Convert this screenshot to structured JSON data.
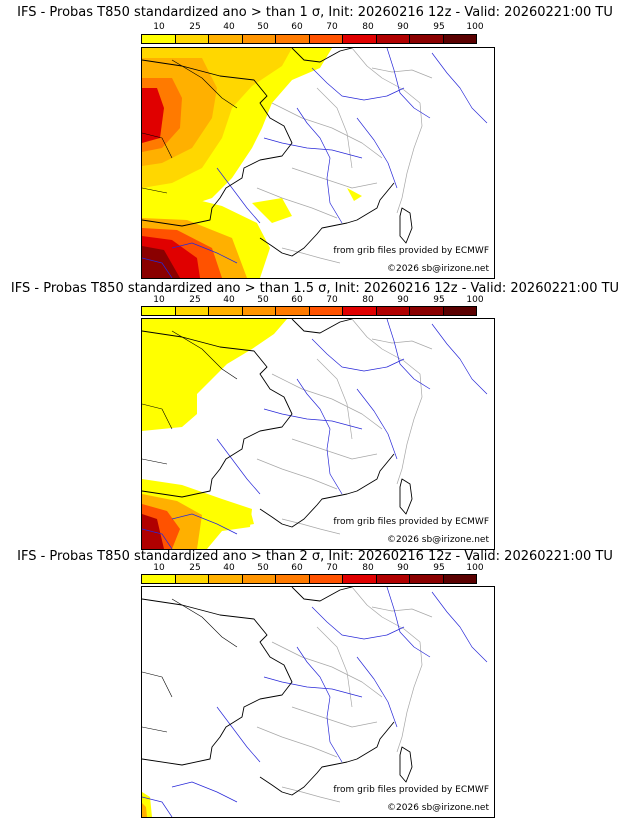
{
  "colorbar": {
    "ticks": [
      "10",
      "25",
      "40",
      "50",
      "60",
      "70",
      "80",
      "90",
      "95",
      "100"
    ],
    "colors": [
      "#ffff00",
      "#ffd700",
      "#ffb000",
      "#ff9400",
      "#ff7a00",
      "#ff5200",
      "#e00000",
      "#b00000",
      "#8a0000",
      "#5a0000"
    ]
  },
  "colors": {
    "coast": "#000000",
    "rivers": "#2828d8",
    "borders": "#a8a8a8"
  },
  "panels": [
    {
      "title": "IFS - Probas T850  standardized ano > than 1 σ, Init: 20260216 12z - Valid: 20260221:00 TU",
      "source": "from grib files provided by ECMWF",
      "copyright": "©2026 sb@irizone.net",
      "extent": "wide"
    },
    {
      "title": "IFS - Probas T850  standardized ano > than 1.5 σ, Init: 20260216 12z - Valid: 20260221:00 TU",
      "source": "from grib files provided by ECMWF",
      "copyright": "©2026 sb@irizone.net",
      "extent": "medium"
    },
    {
      "title": "IFS - Probas T850  standardized ano > than 2 σ, Init: 20260216 12z - Valid: 20260221:00 TU",
      "source": "from grib files provided by ECMWF",
      "copyright": "©2026 sb@irizone.net",
      "extent": "small"
    }
  ]
}
